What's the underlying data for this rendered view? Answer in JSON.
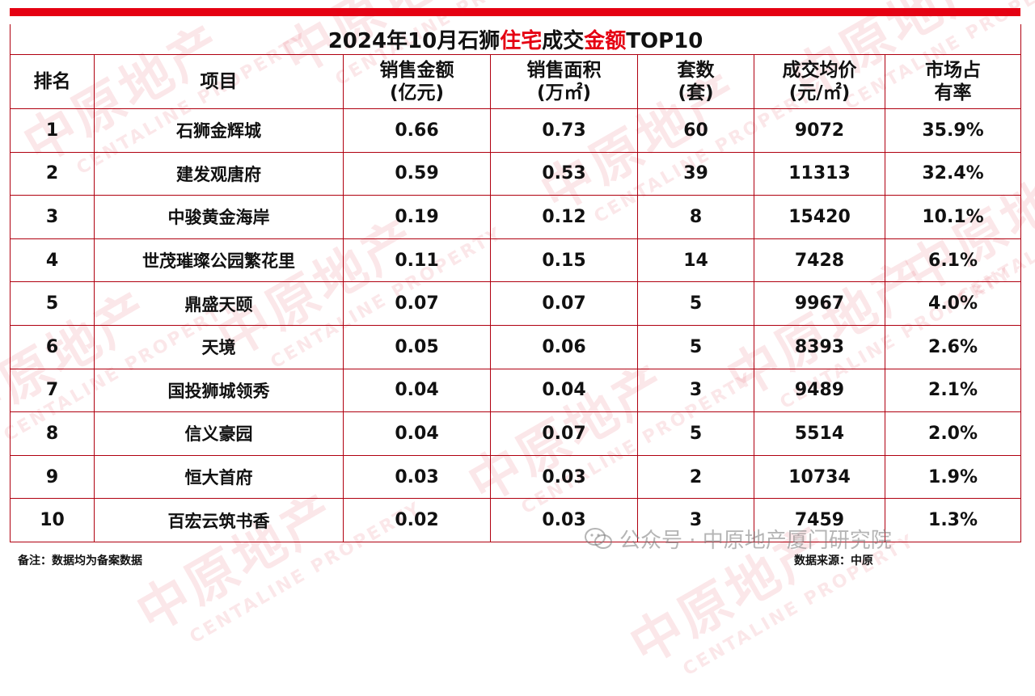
{
  "title": {
    "part1": "2024年10月石狮",
    "part2_red": "住宅",
    "part3": "成交",
    "part4_red": "金额",
    "part5": "TOP10"
  },
  "headers": {
    "rank": "排名",
    "project": "项目",
    "sales_amount": [
      "销售金额",
      "(亿元)"
    ],
    "sales_area": [
      "销售面积",
      "(万㎡)"
    ],
    "units": [
      "套数",
      "(套)"
    ],
    "avg_price": [
      "成交均价",
      "(元/㎡)"
    ],
    "market_share": [
      "市场占",
      "有率"
    ]
  },
  "rows": [
    {
      "rank": "1",
      "project": "石狮金辉城",
      "amount": "0.66",
      "area": "0.73",
      "units": "60",
      "price": "9072",
      "share": "35.9%"
    },
    {
      "rank": "2",
      "project": "建发观唐府",
      "amount": "0.59",
      "area": "0.53",
      "units": "39",
      "price": "11313",
      "share": "32.4%"
    },
    {
      "rank": "3",
      "project": "中骏黄金海岸",
      "amount": "0.19",
      "area": "0.12",
      "units": "8",
      "price": "15420",
      "share": "10.1%"
    },
    {
      "rank": "4",
      "project": "世茂璀璨公园繁花里",
      "amount": "0.11",
      "area": "0.15",
      "units": "14",
      "price": "7428",
      "share": "6.1%"
    },
    {
      "rank": "5",
      "project": "鼎盛天颐",
      "amount": "0.07",
      "area": "0.07",
      "units": "5",
      "price": "9967",
      "share": "4.0%"
    },
    {
      "rank": "6",
      "project": "天境",
      "amount": "0.05",
      "area": "0.06",
      "units": "5",
      "price": "8393",
      "share": "2.6%"
    },
    {
      "rank": "7",
      "project": "国投狮城领秀",
      "amount": "0.04",
      "area": "0.04",
      "units": "3",
      "price": "9489",
      "share": "2.1%"
    },
    {
      "rank": "8",
      "project": "信义豪园",
      "amount": "0.04",
      "area": "0.07",
      "units": "5",
      "price": "5514",
      "share": "2.0%"
    },
    {
      "rank": "9",
      "project": "恒大首府",
      "amount": "0.03",
      "area": "0.03",
      "units": "2",
      "price": "10734",
      "share": "1.9%"
    },
    {
      "rank": "10",
      "project": "百宏云筑书香",
      "amount": "0.02",
      "area": "0.03",
      "units": "3",
      "price": "7459",
      "share": "1.3%"
    }
  ],
  "footer": {
    "note": "备注：数据均为备案数据",
    "source": "数据来源：中原"
  },
  "watermark": {
    "brand": "中原地产",
    "brand_en": "CENTALINE PROPERTY"
  },
  "wechat_overlay": "公众号 · 中原地产厦门研究院",
  "colors": {
    "accent_red": "#e50012",
    "border_red": "#b00010"
  }
}
